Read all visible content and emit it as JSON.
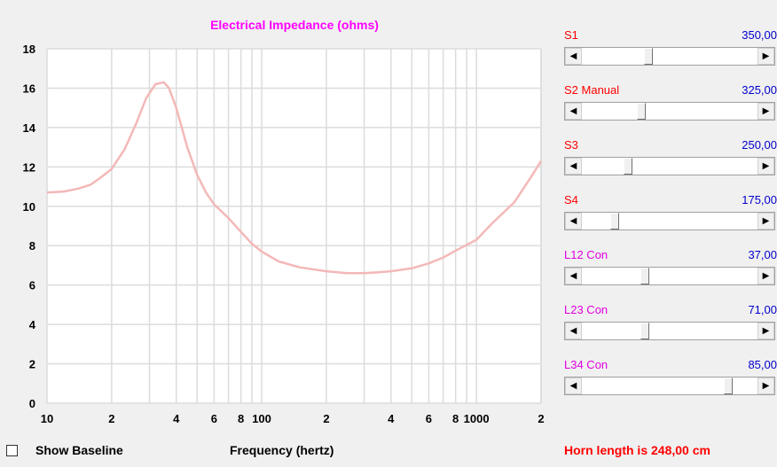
{
  "chart_data": {
    "type": "line",
    "title": "Electrical Impedance (ohms)",
    "xlabel": "Frequency (hertz)",
    "ylabel": "",
    "xscale": "log",
    "xlim": [
      10,
      2000
    ],
    "ylim": [
      0,
      18
    ],
    "yticks": [
      "0",
      "2",
      "4",
      "6",
      "8",
      "10",
      "12",
      "14",
      "16",
      "18"
    ],
    "xticks": [
      {
        "value": 10,
        "label": "10"
      },
      {
        "value": 20,
        "label": "2"
      },
      {
        "value": 40,
        "label": "4"
      },
      {
        "value": 60,
        "label": "6"
      },
      {
        "value": 80,
        "label": "8"
      },
      {
        "value": 100,
        "label": "100"
      },
      {
        "value": 200,
        "label": "2"
      },
      {
        "value": 400,
        "label": "4"
      },
      {
        "value": 600,
        "label": "6"
      },
      {
        "value": 800,
        "label": "8"
      },
      {
        "value": 1000,
        "label": "1000"
      },
      {
        "value": 2000,
        "label": "2"
      }
    ],
    "grid": true,
    "series": [
      {
        "color": "#f4b8b8",
        "x": [
          10,
          12,
          14,
          16,
          18,
          20,
          23,
          26,
          29,
          32,
          35,
          37,
          40,
          45,
          50,
          55,
          60,
          70,
          80,
          90,
          100,
          120,
          150,
          200,
          250,
          300,
          350,
          400,
          500,
          600,
          700,
          800,
          1000,
          1200,
          1500,
          1800,
          2000
        ],
        "y": [
          10.7,
          10.75,
          10.9,
          11.1,
          11.5,
          11.9,
          12.9,
          14.2,
          15.5,
          16.2,
          16.3,
          16.0,
          15.0,
          13.0,
          11.6,
          10.7,
          10.1,
          9.4,
          8.7,
          8.1,
          7.7,
          7.2,
          6.9,
          6.7,
          6.6,
          6.6,
          6.65,
          6.7,
          6.85,
          7.1,
          7.4,
          7.75,
          8.3,
          9.2,
          10.2,
          11.5,
          12.3
        ]
      }
    ]
  },
  "params": [
    {
      "label": "S1",
      "value": "350,00",
      "color": "#ff0000",
      "fraction": 0.37
    },
    {
      "label": "S2  Manual",
      "value": "325,00",
      "color": "#ff0000",
      "fraction": 0.33
    },
    {
      "label": "S3",
      "value": "250,00",
      "color": "#ff0000",
      "fraction": 0.25
    },
    {
      "label": "S4",
      "value": "175,00",
      "color": "#ff0000",
      "fraction": 0.17
    },
    {
      "label": "L12  Con",
      "value": "37,00",
      "color": "#e000e0",
      "fraction": 0.35
    },
    {
      "label": "L23  Con",
      "value": "71,00",
      "color": "#e000e0",
      "fraction": 0.35
    },
    {
      "label": "L34  Con",
      "value": "85,00",
      "color": "#e000e0",
      "fraction": 0.85
    }
  ],
  "bottom": {
    "show_baseline_label": "Show Baseline",
    "show_baseline_checked": false,
    "frequency_label": "Frequency (hertz)",
    "horn_length_text": "Horn length is 248,00 cm"
  }
}
